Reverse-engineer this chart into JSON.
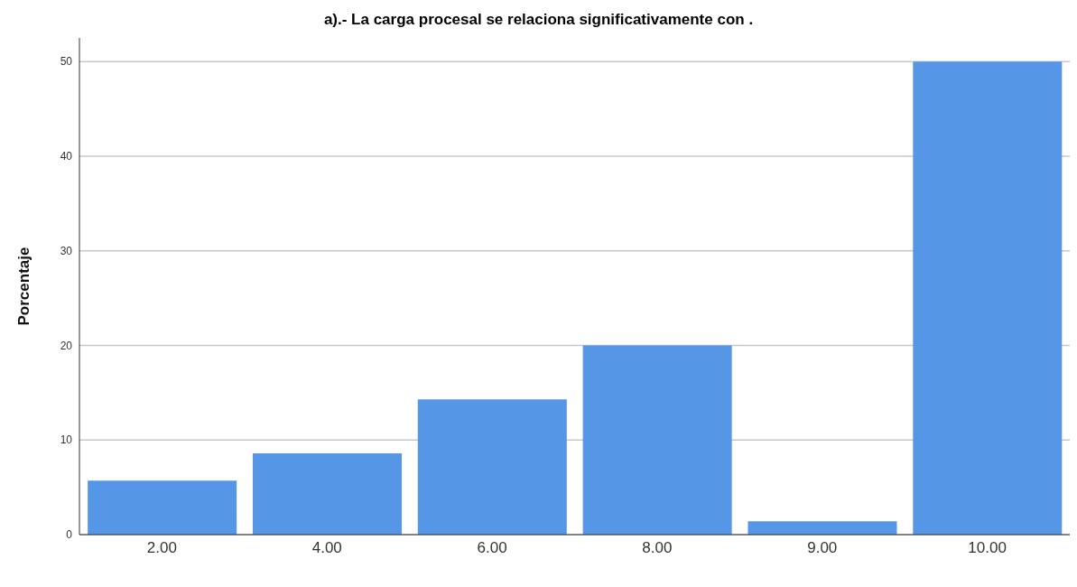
{
  "chart_data": {
    "type": "bar",
    "title": "a).- La carga procesal se relaciona significativamente con .",
    "ylabel": "Porcentaje",
    "categories": [
      "2.00",
      "4.00",
      "6.00",
      "8.00",
      "9.00",
      "10.00"
    ],
    "values": [
      5.7,
      8.6,
      14.3,
      20,
      1.4,
      50
    ],
    "color": "#5596e6",
    "ylim": [
      0,
      52.5
    ],
    "yticks": [
      0,
      10,
      20,
      30,
      40,
      50
    ],
    "grid": "y"
  }
}
